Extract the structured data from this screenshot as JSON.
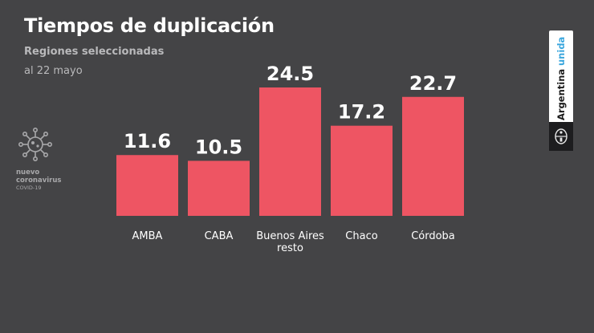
{
  "header": {
    "title": "Tiempos de duplicación",
    "subtitle": "Regiones seleccionadas",
    "date": "al 22 mayo"
  },
  "logo": {
    "line1": "nuevo",
    "line2": "coronavirus",
    "line3": "COVID-19",
    "icon": "virus-icon"
  },
  "badge": {
    "word1": "Argentina",
    "word2": "unida",
    "icon": "coat-of-arms-icon"
  },
  "colors": {
    "background": "#444446",
    "bar": "#ee5563",
    "text": "#ffffff"
  },
  "chart_data": {
    "type": "bar",
    "categories": [
      "AMBA",
      "CABA",
      "Buenos Aires resto",
      "Chaco",
      "Córdoba"
    ],
    "category_lines": [
      [
        "AMBA"
      ],
      [
        "CABA"
      ],
      [
        "Buenos Aires",
        "resto"
      ],
      [
        "Chaco"
      ],
      [
        "Córdoba"
      ]
    ],
    "values": [
      11.6,
      10.5,
      24.5,
      17.2,
      22.7
    ],
    "value_labels": [
      "11.6",
      "10.5",
      "24.5",
      "17.2",
      "22.7"
    ],
    "title": "Tiempos de duplicación",
    "subtitle": "Regiones seleccionadas",
    "xlabel": "",
    "ylabel": "",
    "ylim": [
      0,
      24.5
    ],
    "grid": false,
    "data_labels": true
  }
}
